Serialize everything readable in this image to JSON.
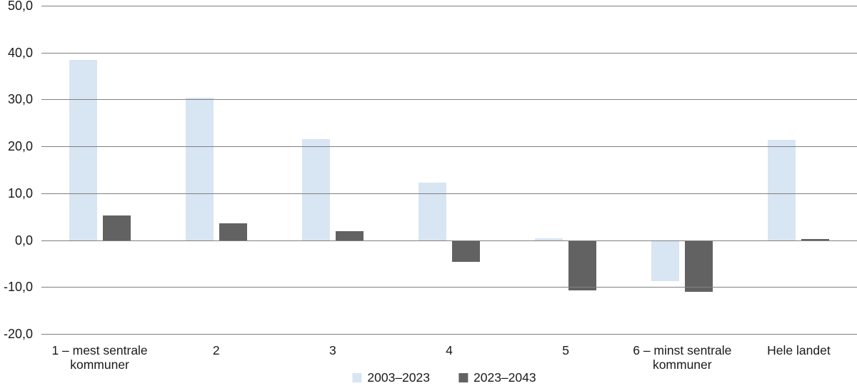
{
  "chart_data": {
    "type": "bar",
    "title": "",
    "categories": [
      "1 – mest sentrale kommuner",
      "2",
      "3",
      "4",
      "5",
      "6 – minst sentrale kommuner",
      "Hele landet"
    ],
    "series": [
      {
        "name": "2003–2023",
        "color": "#d8e5f3",
        "values": [
          38.5,
          30.4,
          21.5,
          12.3,
          0.4,
          -8.7,
          21.4
        ]
      },
      {
        "name": "2023–2043",
        "color": "#626262",
        "values": [
          5.3,
          3.6,
          1.9,
          -4.7,
          -10.7,
          -11.0,
          0.3
        ]
      }
    ],
    "ylim": [
      -20,
      50
    ],
    "yticks": [
      {
        "value": 50,
        "label": "50,0"
      },
      {
        "value": 40,
        "label": "40,0"
      },
      {
        "value": 30,
        "label": "30,0"
      },
      {
        "value": 20,
        "label": "20,0"
      },
      {
        "value": 10,
        "label": "10,0"
      },
      {
        "value": 0,
        "label": "0,0"
      },
      {
        "value": -10,
        "label": "-10,0"
      },
      {
        "value": -20,
        "label": "-20,0"
      }
    ],
    "grid": true,
    "grid_color": "#808080",
    "legend_position": "bottom",
    "background": "#ffffff",
    "text_color": "#1a1a1a"
  }
}
